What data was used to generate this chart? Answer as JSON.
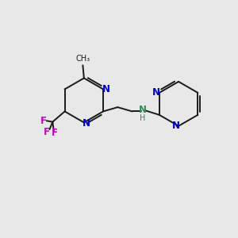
{
  "bg_color": "#e8e8e8",
  "bond_color": "#1a1a1a",
  "N_color": "#0000cc",
  "F_color": "#cc00cc",
  "NH_color": "#2e8b57",
  "bond_width": 1.4,
  "font_size_atom": 8.5,
  "fig_width": 3.0,
  "fig_height": 3.0,
  "dpi": 100,
  "xlim": [
    0,
    10
  ],
  "ylim": [
    0,
    10
  ]
}
